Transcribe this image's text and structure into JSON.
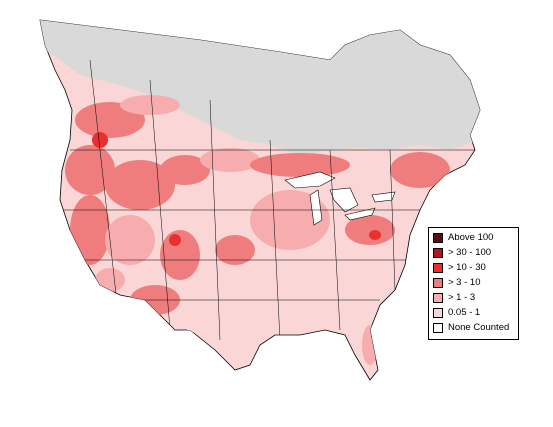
{
  "legend": {
    "items": [
      {
        "label": "Above 100",
        "color": "#5c0a0f"
      },
      {
        "label": "> 30 - 100",
        "color": "#b3141c"
      },
      {
        "label": "> 10 - 30",
        "color": "#e8302e"
      },
      {
        "label": "> 3 - 10",
        "color": "#f07d7d"
      },
      {
        "label": "> 1 - 3",
        "color": "#f7adad"
      },
      {
        "label": "0.05 - 1",
        "color": "#fbd6d6"
      },
      {
        "label": "None Counted",
        "color": "#ffffff"
      }
    ]
  },
  "colors": {
    "no_data_region": "#d9d9d9",
    "boundary_lines": "#000000",
    "water": "#ffffff"
  }
}
